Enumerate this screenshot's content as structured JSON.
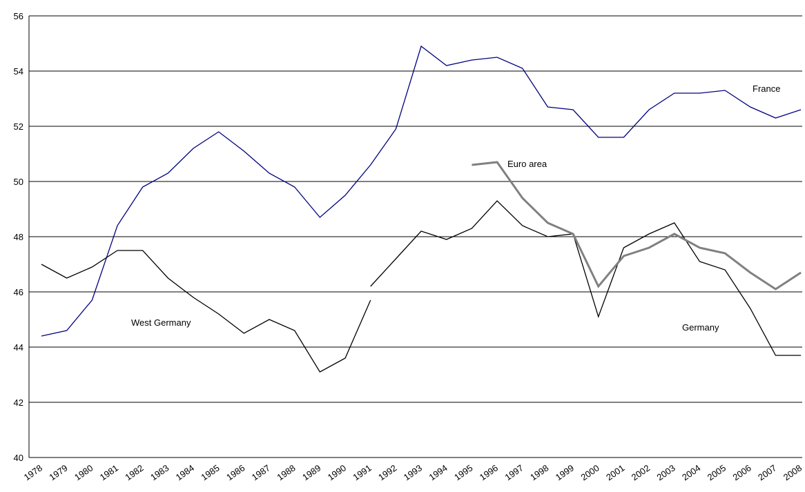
{
  "chart_data": {
    "type": "line",
    "categories": [
      "1978",
      "1979",
      "1980",
      "1981",
      "1982",
      "1983",
      "1984",
      "1985",
      "1986",
      "1987",
      "1988",
      "1989",
      "1990",
      "1991",
      "1992",
      "1993",
      "1994",
      "1995",
      "1996",
      "1997",
      "1998",
      "1999",
      "2000",
      "2001",
      "2002",
      "2003",
      "2004",
      "2005",
      "2006",
      "2007",
      "2008"
    ],
    "series": [
      {
        "name": "France",
        "color": "#000080",
        "values": [
          44.4,
          44.6,
          45.7,
          48.4,
          49.8,
          50.3,
          51.2,
          51.8,
          51.1,
          50.3,
          49.8,
          48.7,
          49.5,
          50.6,
          51.9,
          54.9,
          54.2,
          54.4,
          54.5,
          54.1,
          52.7,
          52.6,
          51.6,
          51.6,
          52.6,
          53.2,
          53.2,
          53.3,
          52.7,
          52.3,
          52.6
        ]
      },
      {
        "name": "West Germany",
        "color": "#000000",
        "values": [
          47.0,
          46.5,
          46.9,
          47.5,
          47.5,
          46.5,
          45.8,
          45.2,
          44.5,
          45.0,
          44.6,
          43.1,
          43.6,
          45.7,
          null,
          null,
          null,
          null,
          null,
          null,
          null,
          null,
          null,
          null,
          null,
          null,
          null,
          null,
          null,
          null,
          null
        ]
      },
      {
        "name": "Germany",
        "color": "#000000",
        "values": [
          null,
          null,
          null,
          null,
          null,
          null,
          null,
          null,
          null,
          null,
          null,
          null,
          null,
          46.2,
          47.2,
          48.2,
          47.9,
          48.3,
          49.3,
          48.4,
          48.0,
          48.1,
          45.1,
          47.6,
          48.1,
          48.5,
          47.1,
          46.8,
          45.4,
          43.7,
          43.7
        ]
      },
      {
        "name": "Euro area",
        "color": "#808080",
        "values": [
          null,
          null,
          null,
          null,
          null,
          null,
          null,
          null,
          null,
          null,
          null,
          null,
          null,
          null,
          null,
          null,
          null,
          50.6,
          50.7,
          49.4,
          48.5,
          48.1,
          46.2,
          47.3,
          47.6,
          48.1,
          47.6,
          47.4,
          46.7,
          46.1,
          46.7
        ]
      }
    ],
    "ylim": [
      40,
      56
    ],
    "yticks": [
      40,
      42,
      44,
      46,
      48,
      50,
      52,
      54,
      56
    ],
    "grid": true
  }
}
